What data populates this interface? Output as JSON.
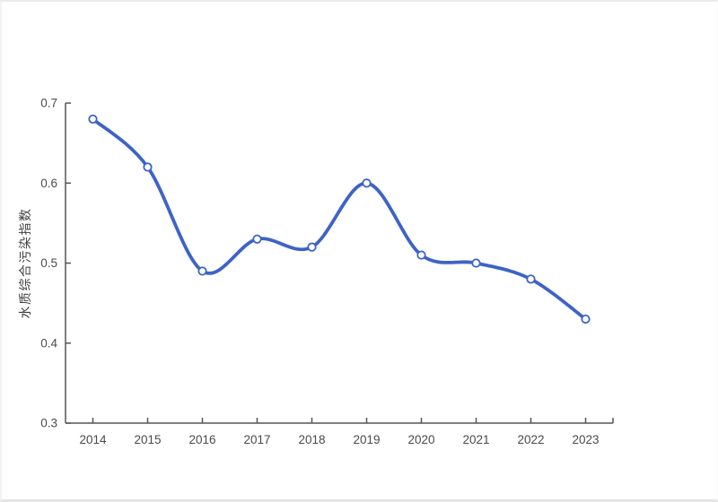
{
  "page": {
    "background": "#ffffff",
    "border_color": "#e9e9e9"
  },
  "chart_data": {
    "type": "line",
    "title": "",
    "categories": [
      "2014",
      "2015",
      "2016",
      "2017",
      "2018",
      "2019",
      "2020",
      "2021",
      "2022",
      "2023"
    ],
    "values": [
      0.68,
      0.62,
      0.49,
      0.53,
      0.52,
      0.6,
      0.51,
      0.5,
      0.48,
      0.43
    ],
    "xlabel": "",
    "ylabel": "水质综合污染指数",
    "ylim": [
      0.3,
      0.7
    ],
    "yticks": [
      0.3,
      0.4,
      0.5,
      0.6,
      0.7
    ],
    "ytick_labels": [
      "0.3",
      "0.4",
      "0.5",
      "0.6",
      "0.7"
    ],
    "grid": false,
    "legend_position": "none",
    "smooth": true,
    "marker": "open-circle",
    "colors": {
      "line": "#3d63c6",
      "marker_fill": "#ffffff",
      "marker_stroke": "#3d63c6",
      "axis": "#555555",
      "tick_label": "#4a4a4a",
      "axis_title": "#3f3f3f"
    }
  }
}
